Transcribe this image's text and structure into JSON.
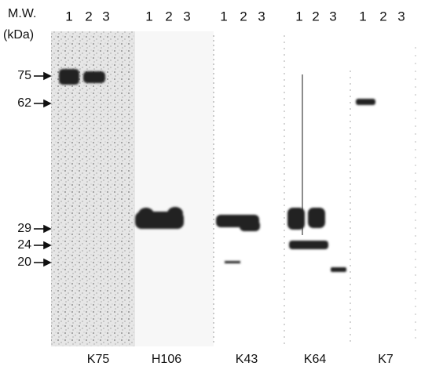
{
  "header": {
    "mw": "M.W.",
    "unit": "(kDa)"
  },
  "markers": [
    "75",
    "62",
    "29",
    "24",
    "20"
  ],
  "panels": [
    {
      "lanes": [
        "1",
        "2",
        "3"
      ],
      "label": "K75"
    },
    {
      "lanes": [
        "1",
        "2",
        "3"
      ],
      "label": "H106"
    },
    {
      "lanes": [
        "1",
        "2",
        "3"
      ],
      "label": "K43"
    },
    {
      "lanes": [
        "1",
        "2",
        "3"
      ],
      "label": "K64"
    },
    {
      "lanes": [
        "1",
        "2",
        "3"
      ],
      "label": "K7"
    }
  ]
}
